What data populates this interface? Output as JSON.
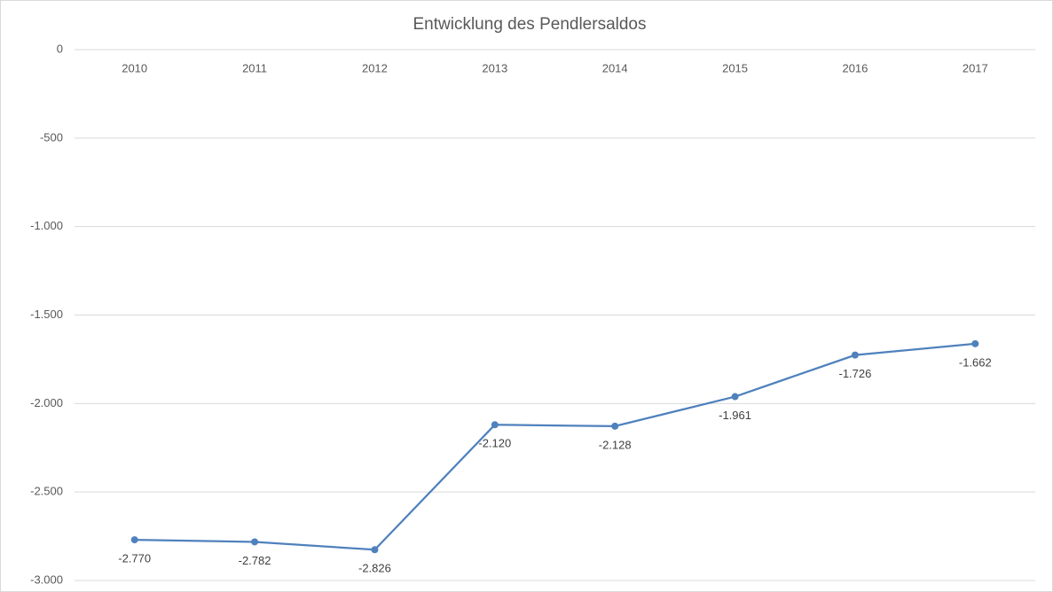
{
  "chart_data": {
    "type": "line",
    "title": "Entwicklung des Pendlersaldos",
    "categories": [
      "2010",
      "2011",
      "2012",
      "2013",
      "2014",
      "2015",
      "2016",
      "2017"
    ],
    "series": [
      {
        "color": "#4f81bd",
        "values": [
          -2770,
          -2782,
          -2826,
          -2120,
          -2128,
          -1961,
          -1726,
          -1662
        ],
        "value_labels": [
          "-2.770",
          "-2.782",
          "-2.826",
          "-2.120",
          "-2.128",
          "-1.961",
          "-1.726",
          "-1.662"
        ]
      }
    ],
    "ylim": [
      -3000,
      0
    ],
    "yticks": [
      0,
      -500,
      {
        "value": -1000,
        "label": "-1.000"
      },
      {
        "value": -1500,
        "label": "-1.500"
      },
      {
        "value": -2000,
        "label": "-2.000"
      },
      {
        "value": -2500,
        "label": "-2.500"
      },
      {
        "value": -3000,
        "label": "-3.000"
      }
    ],
    "grid": true
  }
}
